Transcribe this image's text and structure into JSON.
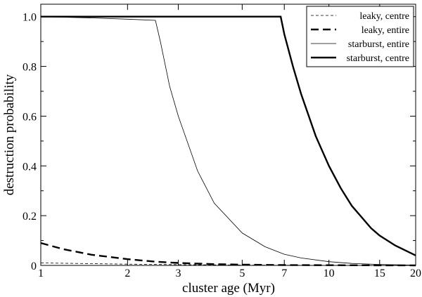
{
  "chart_data": {
    "type": "line",
    "title": "",
    "xlabel": "cluster age (Myr)",
    "ylabel": "destruction probability",
    "xscale": "log",
    "xlim": [
      1,
      20
    ],
    "ylim": [
      0,
      1.05
    ],
    "xticks": [
      1,
      2,
      3,
      5,
      7,
      10,
      15,
      20
    ],
    "xtick_labels": [
      "1",
      "2",
      "3",
      "5",
      "7",
      "10",
      "15",
      "20"
    ],
    "yticks": [
      0,
      0.2,
      0.4,
      0.6,
      0.8,
      1.0
    ],
    "ytick_labels": [
      "0",
      "0.2",
      "0.4",
      "0.6",
      "0.8",
      "1.0"
    ],
    "grid": false,
    "legend_position": "top-right",
    "series": [
      {
        "name": "leaky, centre",
        "style": "thin-dashed",
        "x": [
          1,
          1.5,
          2,
          3,
          5,
          7,
          10,
          15,
          20
        ],
        "y": [
          0.01,
          0.007,
          0.005,
          0.003,
          0.001,
          0.0005,
          0.0002,
          0.0001,
          0.0
        ]
      },
      {
        "name": "leaky, entire",
        "style": "thick-dashed",
        "x": [
          1,
          1.2,
          1.5,
          2,
          2.5,
          3,
          4,
          5,
          7,
          10,
          15,
          20
        ],
        "y": [
          0.09,
          0.065,
          0.043,
          0.025,
          0.015,
          0.01,
          0.005,
          0.003,
          0.0015,
          0.0008,
          0.0003,
          0.0001
        ]
      },
      {
        "name": "starburst, entire",
        "style": "thin-solid",
        "x": [
          1,
          1.5,
          2,
          2.5,
          2.6,
          2.8,
          3,
          3.5,
          4,
          5,
          6,
          7,
          8,
          10,
          12,
          15,
          20
        ],
        "y": [
          1.0,
          0.995,
          0.99,
          0.985,
          0.9,
          0.72,
          0.6,
          0.38,
          0.25,
          0.13,
          0.075,
          0.045,
          0.03,
          0.015,
          0.008,
          0.004,
          0.001
        ]
      },
      {
        "name": "starburst, centre",
        "style": "thick-solid",
        "x": [
          1,
          2,
          3,
          5,
          6.5,
          6.8,
          7,
          7.5,
          8,
          9,
          10,
          11,
          12,
          14,
          15,
          17,
          20
        ],
        "y": [
          1.0,
          1.0,
          1.0,
          1.0,
          1.0,
          1.0,
          0.93,
          0.8,
          0.69,
          0.52,
          0.4,
          0.31,
          0.24,
          0.15,
          0.12,
          0.08,
          0.04
        ]
      }
    ]
  }
}
